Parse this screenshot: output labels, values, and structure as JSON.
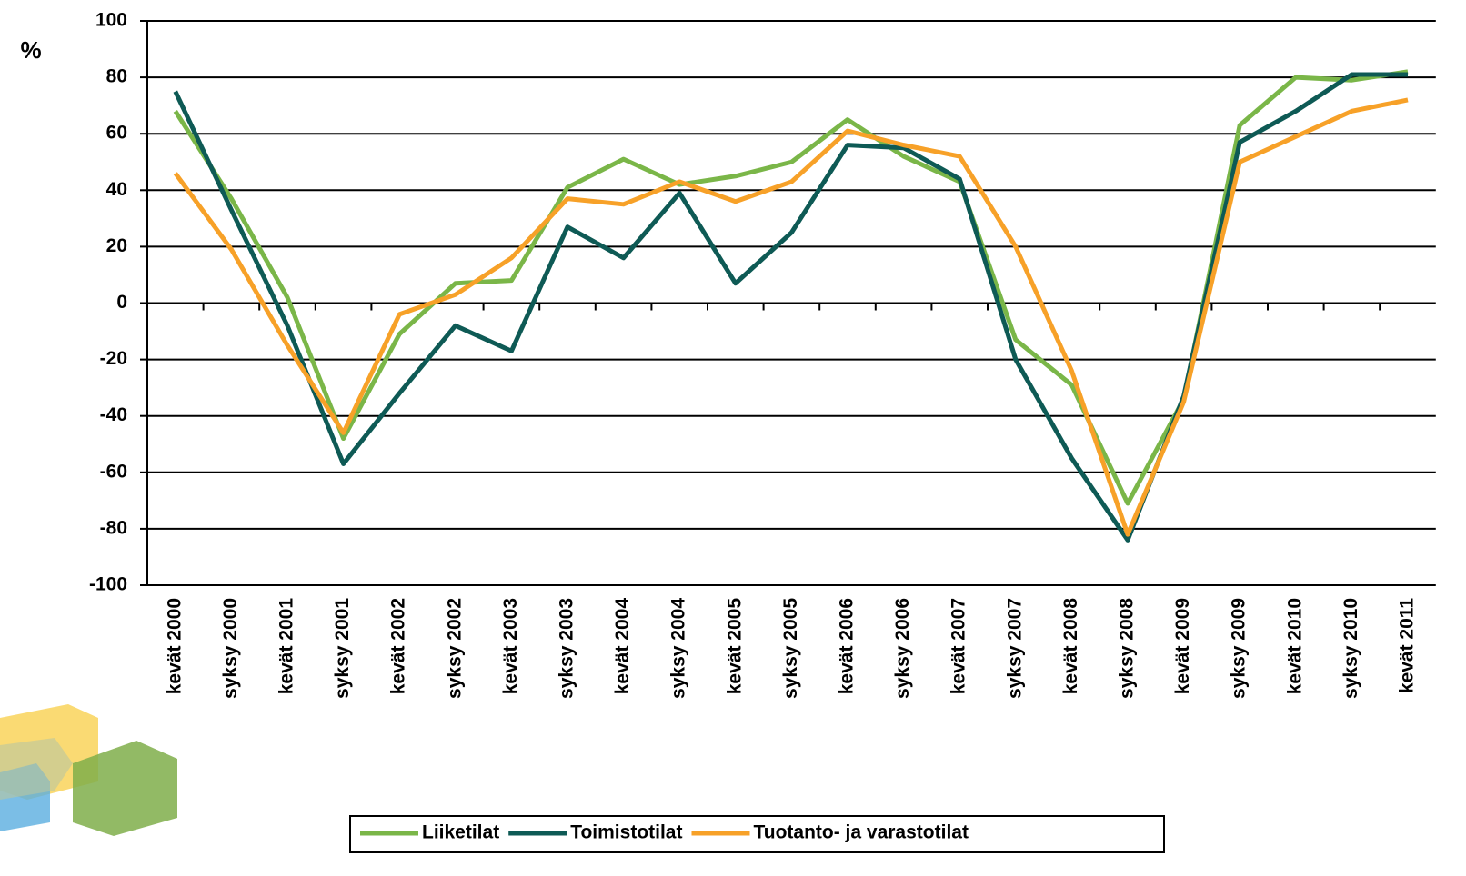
{
  "chart_data": {
    "type": "line",
    "y_label": "%",
    "categories": [
      "kevät 2000",
      "syksy 2000",
      "kevät 2001",
      "syksy 2001",
      "kevät 2002",
      "syksy 2002",
      "kevät 2003",
      "syksy 2003",
      "kevät 2004",
      "syksy 2004",
      "kevät 2005",
      "syksy 2005",
      "kevät 2006",
      "syksy 2006",
      "kevät 2007",
      "syksy 2007",
      "kevät 2008",
      "syksy 2008",
      "kevät 2009",
      "syksy 2009",
      "kevät 2010",
      "syksy 2010",
      "kevät 2011"
    ],
    "series": [
      {
        "name": "Liiketilat",
        "color": "#7ab648",
        "values": [
          68,
          37,
          2,
          -48,
          -11,
          7,
          8,
          41,
          51,
          42,
          45,
          50,
          65,
          52,
          43,
          -13,
          -29,
          -71,
          -34,
          63,
          80,
          79,
          82
        ]
      },
      {
        "name": "Toimistotilat",
        "color": "#0e5a55",
        "values": [
          75,
          33,
          -8,
          -57,
          -32,
          -8,
          -17,
          27,
          16,
          39,
          7,
          25,
          56,
          55,
          44,
          -20,
          -55,
          -84,
          -33,
          57,
          68,
          81,
          81
        ]
      },
      {
        "name": "Tuotanto- ja varastotilat",
        "color": "#f7a128",
        "values": [
          46,
          19,
          -15,
          -46,
          -4,
          3,
          16,
          37,
          35,
          43,
          36,
          43,
          61,
          56,
          52,
          20,
          -24,
          -82,
          -35,
          50,
          59,
          68,
          72
        ]
      }
    ],
    "ylim": [
      -100,
      100
    ],
    "yticks": [
      -100,
      -80,
      -60,
      -40,
      -20,
      0,
      20,
      40,
      60,
      80,
      100
    ],
    "grid": true,
    "legend": "bottom"
  }
}
